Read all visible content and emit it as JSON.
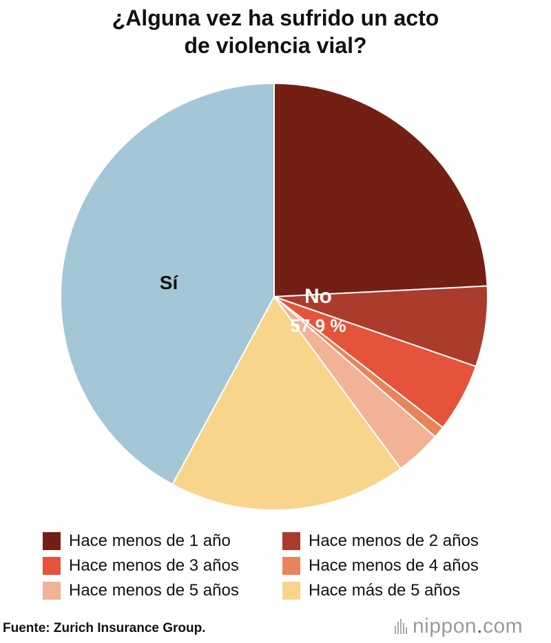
{
  "chart_data": {
    "type": "pie",
    "title_lines": [
      "¿Alguna vez ha sufrido un acto",
      "de violencia vial?"
    ],
    "inner_ring": [
      {
        "label": "No",
        "value": 57.9,
        "value_label": "57.9 %",
        "color": "#3a100b"
      },
      {
        "label": "Sí",
        "value": 42.1,
        "color": "#a3c7d6"
      }
    ],
    "outer_ring": [
      {
        "label": "Hace menos de 1 año",
        "value": 24.2,
        "color": "#731f13"
      },
      {
        "label": "Hace menos de 2 años",
        "value": 6.1,
        "color": "#ab3b2b"
      },
      {
        "label": "Hace menos de 3 años",
        "value": 5.2,
        "color": "#e5533b"
      },
      {
        "label": "Hace menos de 4 años",
        "value": 0.9,
        "color": "#e9845a"
      },
      {
        "label": "Hace menos de 5 años",
        "value": 3.5,
        "color": "#f1b296"
      },
      {
        "label": "Hace más de 5 años",
        "value": 18.0,
        "color": "#f9d48b"
      },
      {
        "label": "Sí",
        "value": 42.1,
        "color": "#a3c7d6"
      }
    ],
    "slice_labels": {
      "no": "No",
      "no_value": "57.9 %",
      "si": "Sí"
    },
    "legend_placement": "bottom"
  },
  "source": "Fuente: Zurich Insurance Group.",
  "brand": {
    "name": "nippon",
    "dot": ".",
    "suffix": "com"
  }
}
